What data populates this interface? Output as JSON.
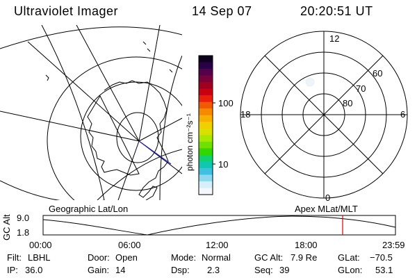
{
  "header": {
    "title": "Ultraviolet Imager",
    "date": "14 Sep 07",
    "time": "20:20:51 UT"
  },
  "colorbar": {
    "unit_label": "photon cm⁻²s⁻¹",
    "tick_100": "100",
    "tick_10": "10",
    "colors": [
      "#0d0020",
      "#2a0048",
      "#55004a",
      "#7a003a",
      "#a00020",
      "#c80010",
      "#e8200a",
      "#f05a00",
      "#f58a00",
      "#f8b000",
      "#f0d000",
      "#d8e000",
      "#a8e800",
      "#70e000",
      "#30d800",
      "#10d070",
      "#10c8b0",
      "#40c0e0",
      "#90d8f0",
      "#d8eef8",
      "#f4f8fc"
    ]
  },
  "geo_map": {
    "label": "Geographic Lat/Lon"
  },
  "polar_plot": {
    "label": "Apex MLat/MLT",
    "clock_labels": {
      "top": "12",
      "bottom": "0",
      "left": "18",
      "right": "6"
    },
    "lat_labels": [
      "80",
      "70",
      "60"
    ]
  },
  "orbit_plot": {
    "ylabel": "GC Alt",
    "y_ticks": [
      "9.0",
      "1.8"
    ],
    "x_ticks": [
      "00:00",
      "06:00",
      "12:00",
      "18:00",
      "23:59"
    ],
    "marker_color": "#e00000"
  },
  "status": {
    "filt_label": "Filt:",
    "filt_value": "LBHL",
    "door_label": "Door:",
    "door_value": "Open",
    "mode_label": "Mode:",
    "mode_value": "Normal",
    "gcalt_label": "GC Alt:",
    "gcalt_value": "7.9 Re",
    "glat_label": "GLat:",
    "glat_value": "−70.5",
    "ip_label": "IP:",
    "ip_value": "36.0",
    "gain_label": "Gain:",
    "gain_value": "14",
    "dsp_label": "Dsp:",
    "dsp_value": "2.3",
    "seq_label": "Seq:",
    "seq_value": "39",
    "glon_label": "GLon:",
    "glon_value": "53.1"
  }
}
